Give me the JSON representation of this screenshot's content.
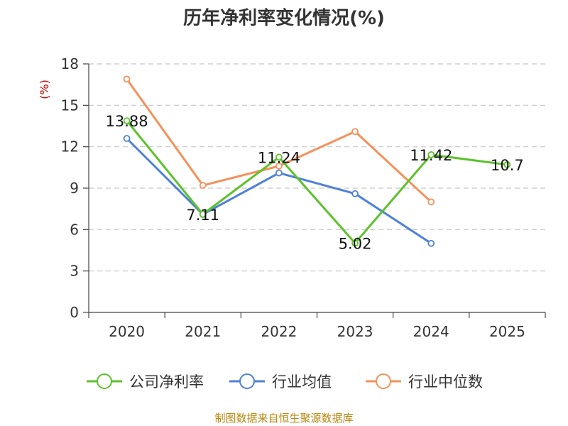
{
  "chart_data": {
    "type": "line",
    "title": "历年净利率变化情况(%)",
    "ylabel": "(%)",
    "categories": [
      "2020",
      "2021",
      "2022",
      "2023",
      "2024",
      "2025"
    ],
    "ylim": [
      0,
      18
    ],
    "yticks": [
      0,
      3,
      6,
      9,
      12,
      15,
      18
    ],
    "grid": true,
    "legend_position": "bottom",
    "series": [
      {
        "name": "公司净利率",
        "color": "#5cc22b",
        "values": [
          13.88,
          7.11,
          11.24,
          5.02,
          11.42,
          10.7
        ],
        "labels": [
          "13.88",
          "7.11",
          "11.24",
          "5.02",
          "11.42",
          "10.7"
        ]
      },
      {
        "name": "行业均值",
        "color": "#4f80d9",
        "values": [
          12.6,
          7.1,
          10.1,
          8.6,
          5.0,
          null
        ],
        "labels": []
      },
      {
        "name": "行业中位数",
        "color": "#f5915a",
        "values": [
          16.9,
          9.2,
          10.6,
          13.1,
          8.0,
          null
        ],
        "labels": []
      }
    ],
    "source": "制图数据来自恒生聚源数据库"
  }
}
